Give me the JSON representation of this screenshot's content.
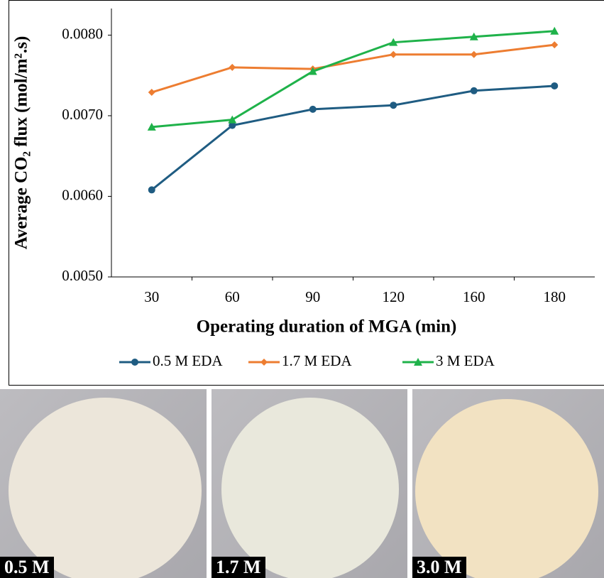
{
  "chart_data": {
    "type": "line",
    "y_label": "Average CO₂ flux (mol/m².s)",
    "x_label": "Operating duration of MGA (min)",
    "categories": [
      "30",
      "60",
      "90",
      "120",
      "160",
      "180"
    ],
    "series": [
      {
        "name": "0.5 M EDA",
        "color": "#1f5c82",
        "marker": "circle",
        "values": [
          0.00608,
          0.00688,
          0.00708,
          0.00713,
          0.00731,
          0.00737
        ]
      },
      {
        "name": "1.7 M EDA",
        "color": "#ed7d31",
        "marker": "diamond",
        "values": [
          0.00729,
          0.0076,
          0.00758,
          0.00776,
          0.00776,
          0.00788
        ]
      },
      {
        "name": "3 M EDA",
        "color": "#1fb24a",
        "marker": "triangle",
        "values": [
          0.00686,
          0.00695,
          0.00755,
          0.00791,
          0.00798,
          0.00805
        ]
      }
    ],
    "ylim": [
      0.005,
      0.00833
    ],
    "yticks": [
      {
        "value": 0.005,
        "label": "0.0050"
      },
      {
        "value": 0.006,
        "label": "0.0060"
      },
      {
        "value": 0.007,
        "label": "0.0070"
      },
      {
        "value": 0.008,
        "label": "0.0080"
      }
    ],
    "grid": false,
    "legend": "bottom"
  },
  "panels": [
    {
      "label": "0.5 M"
    },
    {
      "label": "1.7 M"
    },
    {
      "label": "3.0 M"
    }
  ]
}
